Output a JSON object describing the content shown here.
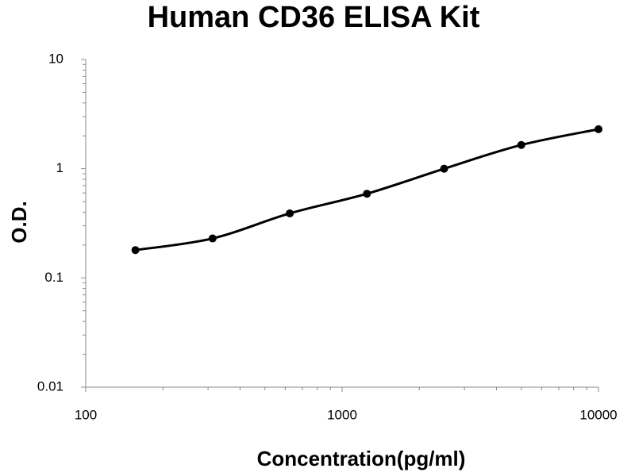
{
  "chart_data": {
    "type": "scatter",
    "title": "Human CD36 ELISA Kit",
    "x_label": "Concentration(pg/ml)",
    "y_label": "O.D.",
    "x": [
      156.25,
      312.5,
      625,
      1250,
      2500,
      5000,
      10000
    ],
    "values": [
      0.18,
      0.23,
      0.39,
      0.59,
      1.0,
      1.65,
      2.3
    ],
    "color": "#000000",
    "fit_curve": true,
    "xscale": "log",
    "yscale": "log",
    "xlim": [
      100,
      10000
    ],
    "ylim": [
      0.01,
      10
    ],
    "xticks": [
      100,
      1000,
      10000
    ],
    "yticks": [
      0.01,
      0.1,
      1,
      10
    ],
    "xticks_minor": [
      200,
      300,
      400,
      500,
      600,
      700,
      800,
      900,
      2000,
      3000,
      4000,
      5000,
      6000,
      7000,
      8000,
      9000
    ],
    "yticks_minor": [
      0.02,
      0.03,
      0.04,
      0.05,
      0.06,
      0.07,
      0.08,
      0.09,
      0.2,
      0.3,
      0.4,
      0.5,
      0.6,
      0.7,
      0.8,
      0.9,
      2,
      3,
      4,
      5,
      6,
      7,
      8,
      9
    ],
    "grid": false
  }
}
